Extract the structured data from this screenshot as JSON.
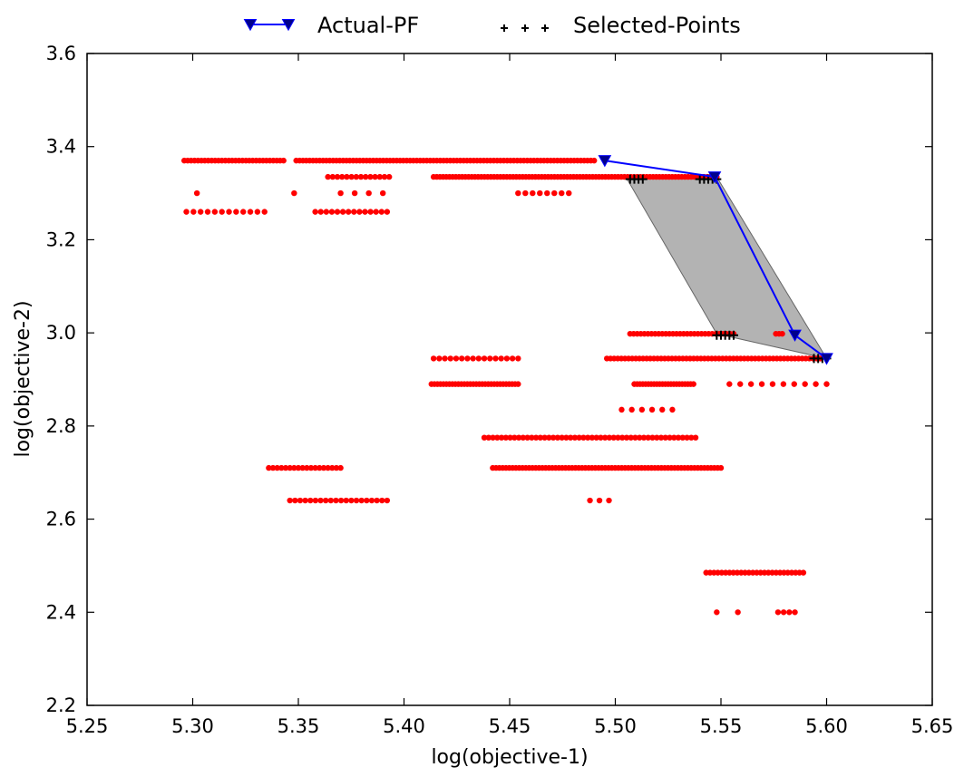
{
  "chart_data": {
    "type": "scatter",
    "title": "",
    "xlabel": "log(objective-1)",
    "ylabel": "log(objective-2)",
    "xlim": [
      5.25,
      5.65
    ],
    "ylim": [
      2.2,
      3.6
    ],
    "x_ticks": [
      "5.25",
      "5.30",
      "5.35",
      "5.40",
      "5.45",
      "5.50",
      "5.55",
      "5.60",
      "5.65"
    ],
    "y_ticks": [
      "2.2",
      "2.4",
      "2.6",
      "2.8",
      "3.0",
      "3.2",
      "3.4",
      "3.6"
    ],
    "grid": false,
    "legend_position": "top-center",
    "series": [
      {
        "name": "Actual-PF",
        "kind": "line-with-down-triangle-markers",
        "color": "#0000ff",
        "marker_fill": "#00008b",
        "points": [
          [
            5.495,
            3.37
          ],
          [
            5.547,
            3.335
          ],
          [
            5.585,
            2.995
          ],
          [
            5.6,
            2.945
          ]
        ]
      },
      {
        "name": "Selected-Points",
        "kind": "plus-markers",
        "color": "#000000",
        "points": [
          [
            5.507,
            3.33
          ],
          [
            5.509,
            3.33
          ],
          [
            5.511,
            3.33
          ],
          [
            5.513,
            3.33
          ],
          [
            5.54,
            3.33
          ],
          [
            5.542,
            3.33
          ],
          [
            5.544,
            3.33
          ],
          [
            5.546,
            3.33
          ],
          [
            5.548,
            3.33
          ],
          [
            5.548,
            2.995
          ],
          [
            5.55,
            2.995
          ],
          [
            5.552,
            2.995
          ],
          [
            5.554,
            2.995
          ],
          [
            5.556,
            2.995
          ],
          [
            5.594,
            2.945
          ],
          [
            5.596,
            2.945
          ],
          [
            5.598,
            2.945
          ],
          [
            5.6,
            2.945
          ]
        ]
      },
      {
        "name": "",
        "kind": "shaded-region",
        "color": "#999999",
        "points": [
          [
            5.505,
            3.335
          ],
          [
            5.548,
            3.335
          ],
          [
            5.6,
            2.945
          ],
          [
            5.548,
            2.998
          ]
        ]
      },
      {
        "name": "",
        "kind": "scatter-dots",
        "color": "#ff0000",
        "clusters": [
          {
            "x0": 5.296,
            "x1": 5.343,
            "y": 3.37,
            "n": 30
          },
          {
            "x0": 5.349,
            "x1": 5.49,
            "y": 3.37,
            "n": 90
          },
          {
            "x0": 5.364,
            "x1": 5.393,
            "y": 3.335,
            "n": 14
          },
          {
            "x0": 5.414,
            "x1": 5.548,
            "y": 3.335,
            "n": 90
          },
          {
            "x0": 5.302,
            "x1": 5.302,
            "y": 3.3,
            "n": 1
          },
          {
            "x0": 5.348,
            "x1": 5.348,
            "y": 3.3,
            "n": 1
          },
          {
            "x0": 5.37,
            "x1": 5.39,
            "y": 3.3,
            "n": 4
          },
          {
            "x0": 5.454,
            "x1": 5.478,
            "y": 3.3,
            "n": 8
          },
          {
            "x0": 5.297,
            "x1": 5.334,
            "y": 3.26,
            "n": 12
          },
          {
            "x0": 5.358,
            "x1": 5.392,
            "y": 3.26,
            "n": 14
          },
          {
            "x0": 5.507,
            "x1": 5.556,
            "y": 2.998,
            "n": 30
          },
          {
            "x0": 5.576,
            "x1": 5.579,
            "y": 2.998,
            "n": 3
          },
          {
            "x0": 5.414,
            "x1": 5.454,
            "y": 2.945,
            "n": 16
          },
          {
            "x0": 5.496,
            "x1": 5.597,
            "y": 2.945,
            "n": 60
          },
          {
            "x0": 5.413,
            "x1": 5.454,
            "y": 2.89,
            "n": 30
          },
          {
            "x0": 5.509,
            "x1": 5.537,
            "y": 2.89,
            "n": 22
          },
          {
            "x0": 5.554,
            "x1": 5.6,
            "y": 2.89,
            "n": 10
          },
          {
            "x0": 5.503,
            "x1": 5.527,
            "y": 2.835,
            "n": 6
          },
          {
            "x0": 5.438,
            "x1": 5.538,
            "y": 2.775,
            "n": 50
          },
          {
            "x0": 5.336,
            "x1": 5.37,
            "y": 2.71,
            "n": 18
          },
          {
            "x0": 5.442,
            "x1": 5.55,
            "y": 2.71,
            "n": 70
          },
          {
            "x0": 5.346,
            "x1": 5.392,
            "y": 2.64,
            "n": 20
          },
          {
            "x0": 5.488,
            "x1": 5.497,
            "y": 2.64,
            "n": 3
          },
          {
            "x0": 5.543,
            "x1": 5.589,
            "y": 2.485,
            "n": 26
          },
          {
            "x0": 5.548,
            "x1": 5.548,
            "y": 2.4,
            "n": 1
          },
          {
            "x0": 5.558,
            "x1": 5.558,
            "y": 2.4,
            "n": 1
          },
          {
            "x0": 5.577,
            "x1": 5.585,
            "y": 2.4,
            "n": 4
          }
        ]
      }
    ]
  }
}
